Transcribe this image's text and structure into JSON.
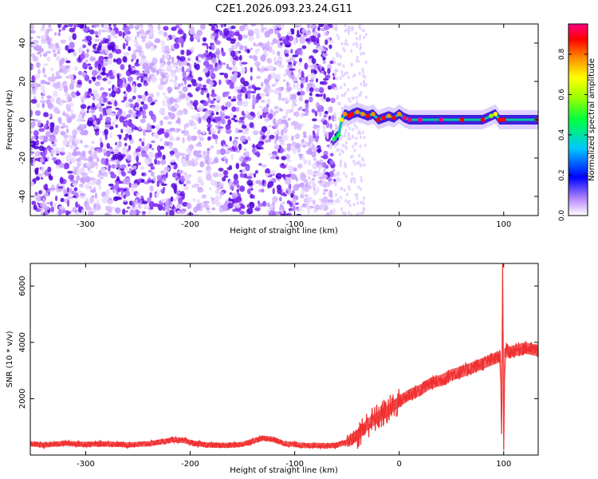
{
  "title": "C2E1.2026.093.23.24.G11",
  "chart_data": [
    {
      "type": "heatmap",
      "name": "spectrogram",
      "xlabel": "Height of straight line (km)",
      "ylabel": "Frequency (Hz)",
      "xlim": [
        -353,
        133
      ],
      "ylim": [
        -50,
        50
      ],
      "xticks": [
        -300,
        -200,
        -100,
        0,
        100
      ],
      "yticks": [
        -40,
        -20,
        0,
        20,
        40
      ],
      "colorbar": {
        "label": "Normalized spectral amplitude",
        "range": [
          0,
          0.95
        ],
        "ticks": [
          0.0,
          0.2,
          0.4,
          0.6,
          0.8
        ],
        "colormap": "rainbow"
      },
      "noise_region_x": [
        -353,
        -62
      ],
      "signal_line": {
        "x": [
          -62,
          -58,
          -55,
          -52,
          -48,
          -45,
          -40,
          -35,
          -30,
          -25,
          -20,
          -15,
          -10,
          -5,
          0,
          5,
          10,
          20,
          40,
          60,
          80,
          88,
          92,
          96,
          100,
          133
        ],
        "frequency_hz": [
          -10,
          -8,
          0,
          3,
          2,
          3,
          4,
          3,
          2,
          3,
          0,
          1,
          2,
          1,
          3,
          1,
          0,
          0,
          0,
          0,
          0,
          2,
          3,
          0,
          0,
          0
        ],
        "amplitude": [
          0.4,
          0.45,
          0.6,
          0.75,
          0.8,
          0.8,
          0.75,
          0.7,
          0.78,
          0.7,
          0.85,
          0.8,
          0.75,
          0.8,
          0.7,
          0.9,
          0.92,
          0.9,
          0.88,
          0.85,
          0.8,
          0.55,
          0.6,
          0.8,
          0.85,
          0.8
        ]
      }
    },
    {
      "type": "line",
      "name": "snr",
      "xlabel": "Height of straight line (km)",
      "ylabel": "SNR (10 * v/v)",
      "xlim": [
        -353,
        133
      ],
      "ylim": [
        0,
        6800
      ],
      "xticks": [
        -300,
        -200,
        -100,
        0,
        100
      ],
      "yticks": [
        2000,
        4000,
        6000
      ],
      "color": "#f03030",
      "series": [
        {
          "name": "SNR",
          "x": [
            -353,
            -340,
            -320,
            -300,
            -280,
            -260,
            -240,
            -225,
            -215,
            -205,
            -195,
            -180,
            -165,
            -150,
            -140,
            -130,
            -120,
            -110,
            -100,
            -90,
            -80,
            -70,
            -60,
            -50,
            -40,
            -30,
            -20,
            -10,
            0,
            10,
            20,
            30,
            40,
            50,
            60,
            70,
            80,
            90,
            97,
            98,
            99,
            100,
            101,
            102,
            103,
            105,
            110,
            120,
            133
          ],
          "y": [
            400,
            350,
            420,
            380,
            400,
            360,
            400,
            480,
            550,
            500,
            400,
            350,
            340,
            380,
            500,
            600,
            550,
            400,
            380,
            330,
            350,
            330,
            350,
            450,
            700,
            1100,
            1350,
            1600,
            1900,
            2150,
            2300,
            2550,
            2650,
            2850,
            2950,
            3100,
            3250,
            3400,
            3500,
            300,
            6800,
            250,
            3700,
            3600,
            3750,
            3650,
            3700,
            3800,
            3700
          ]
        }
      ]
    }
  ]
}
